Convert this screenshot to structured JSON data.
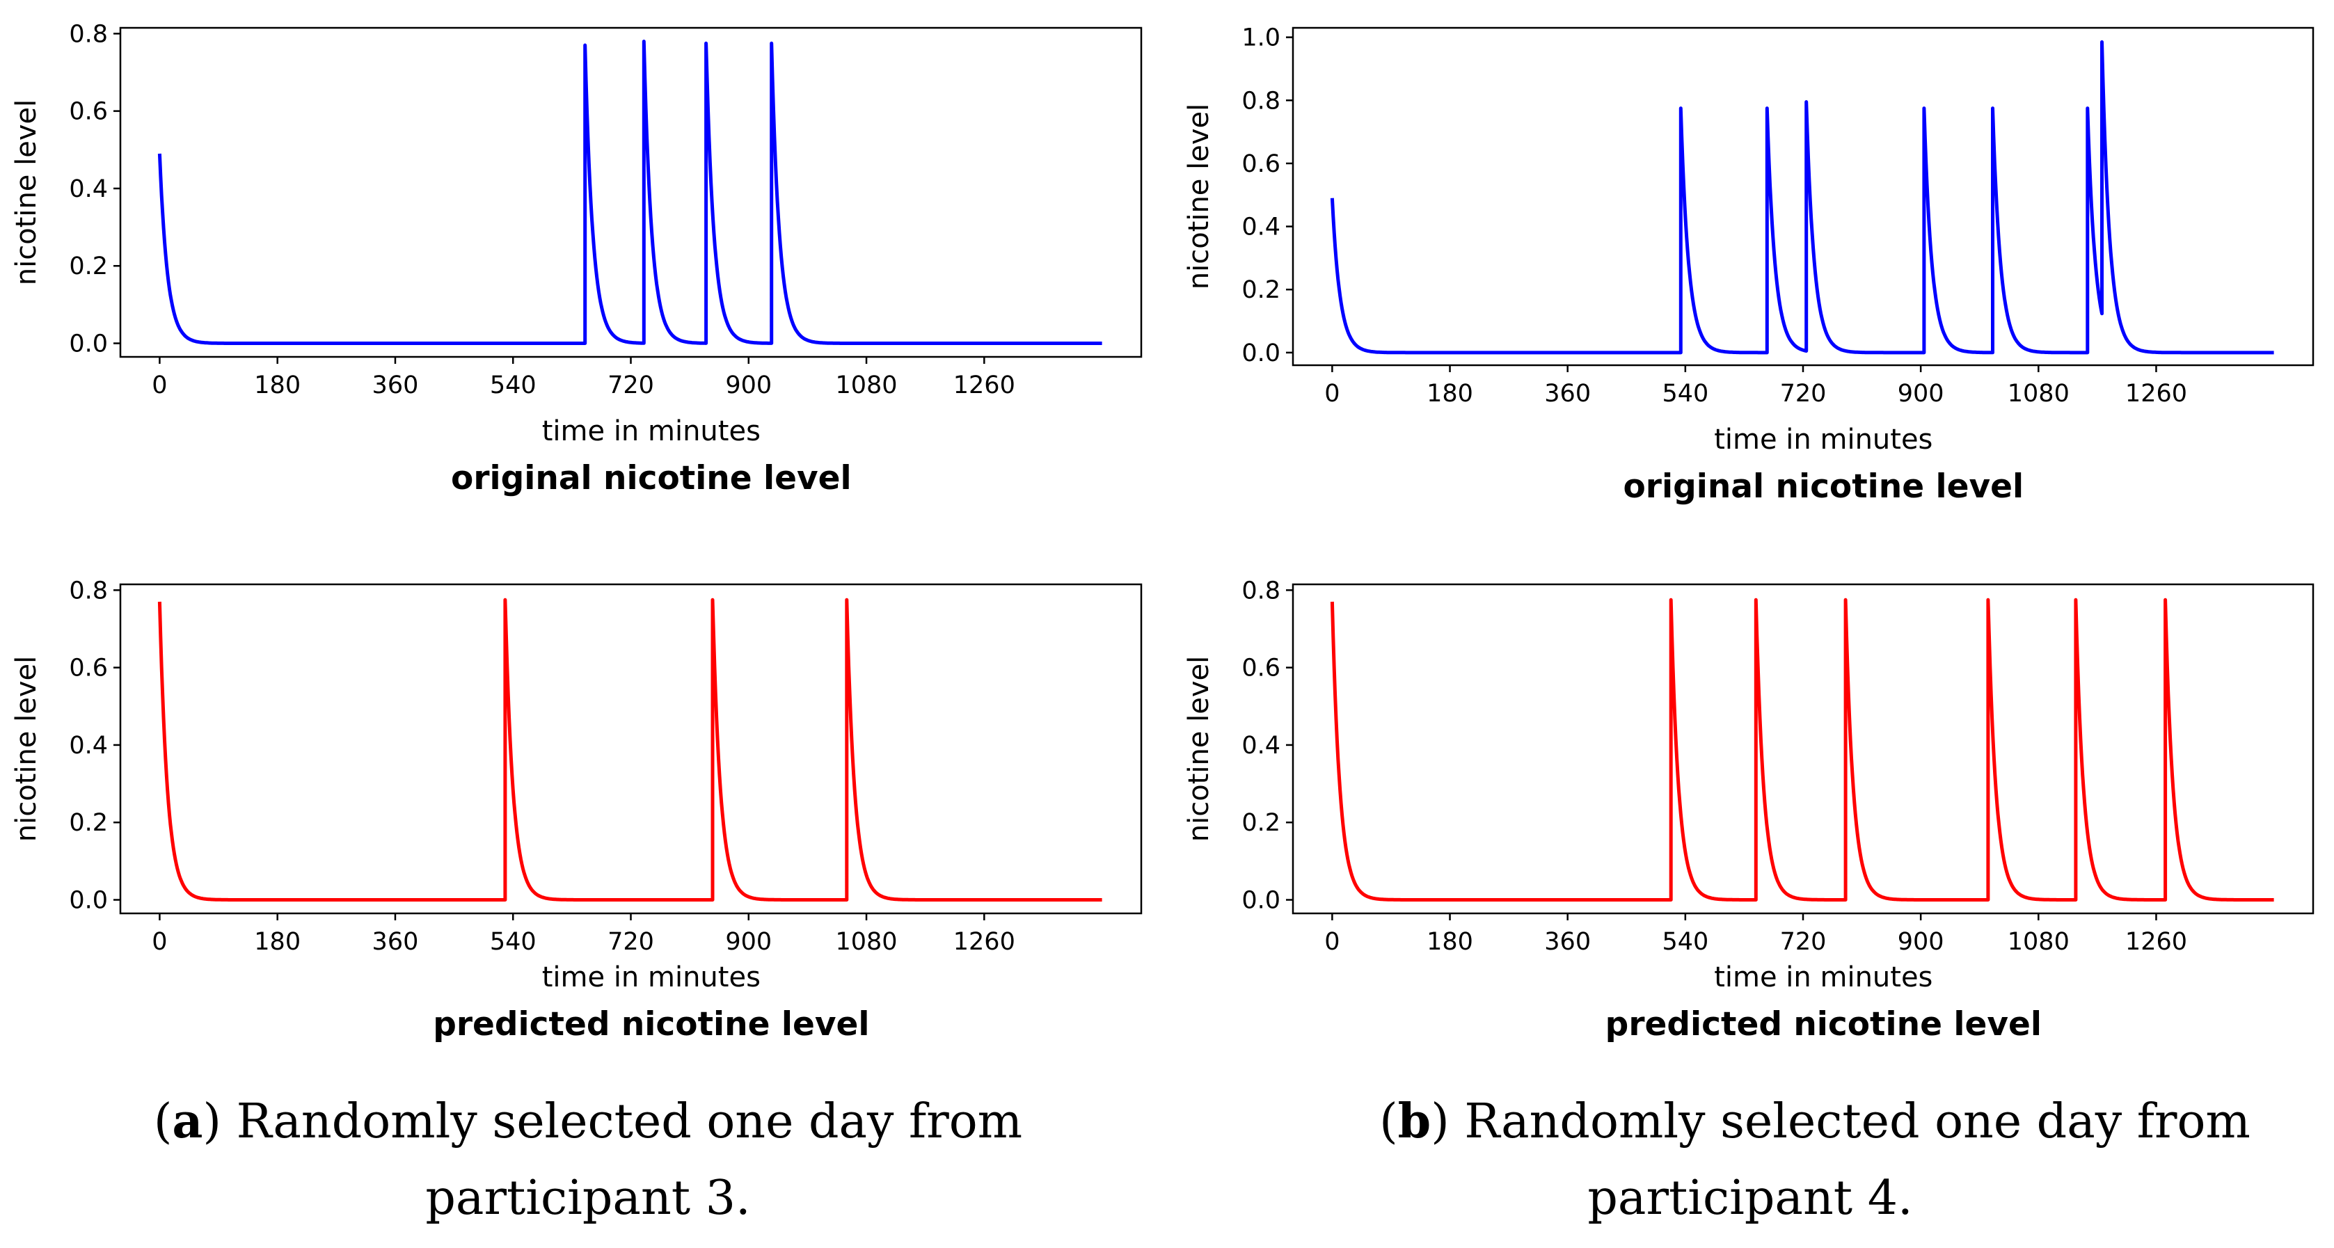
{
  "colors": {
    "original": "#0000ff",
    "predicted": "#ff0000",
    "axis": "#000000"
  },
  "captions": {
    "a": {
      "open": "(",
      "letter": "a",
      "rest": ") Randomly selected one day from",
      "line2": "participant 3."
    },
    "b": {
      "open": "(",
      "letter": "b",
      "rest": ") Randomly selected one day from",
      "line2": "participant 4."
    }
  },
  "chart_data": [
    {
      "id": "a-original",
      "type": "line",
      "title": "original nicotine level",
      "xlabel": "time in minutes",
      "ylabel": "nicotine level",
      "xlim": [
        -60,
        1500
      ],
      "ylim": [
        -0.035,
        0.815
      ],
      "xticks": [
        0,
        180,
        360,
        540,
        720,
        900,
        1080,
        1260
      ],
      "yticks": [
        0.0,
        0.2,
        0.4,
        0.6,
        0.8
      ],
      "ytick_labels": [
        "0.0",
        "0.2",
        "0.4",
        "0.6",
        "0.8"
      ],
      "series": [
        {
          "name": "original nicotine level",
          "color": "#0000ff",
          "start_level": 0.49,
          "end_time": 1440,
          "decay_minutes": 12,
          "doses": [
            {
              "time": 650,
              "level": 0.77
            },
            {
              "time": 740,
              "level": 0.78
            },
            {
              "time": 835,
              "level": 0.775
            },
            {
              "time": 935,
              "level": 0.775
            }
          ]
        }
      ]
    },
    {
      "id": "b-original",
      "type": "line",
      "title": "original nicotine level",
      "xlabel": "time in minutes",
      "ylabel": "nicotine level",
      "xlim": [
        -60,
        1500
      ],
      "ylim": [
        -0.04,
        1.03
      ],
      "xticks": [
        0,
        180,
        360,
        540,
        720,
        900,
        1080,
        1260
      ],
      "yticks": [
        0.0,
        0.2,
        0.4,
        0.6,
        0.8,
        1.0
      ],
      "ytick_labels": [
        "0.0",
        "0.2",
        "0.4",
        "0.6",
        "0.8",
        "1.0"
      ],
      "series": [
        {
          "name": "original nicotine level",
          "color": "#0000ff",
          "start_level": 0.49,
          "end_time": 1440,
          "decay_minutes": 12,
          "doses": [
            {
              "time": 533,
              "level": 0.775
            },
            {
              "time": 665,
              "level": 0.775
            },
            {
              "time": 725,
              "level": 0.795
            },
            {
              "time": 905,
              "level": 0.775
            },
            {
              "time": 1010,
              "level": 0.775
            },
            {
              "time": 1155,
              "level": 0.775
            },
            {
              "time": 1177,
              "level": 0.985
            }
          ]
        }
      ]
    },
    {
      "id": "a-predicted",
      "type": "line",
      "title": "predicted nicotine level",
      "xlabel": "time in minutes",
      "ylabel": "nicotine level",
      "xlim": [
        -60,
        1500
      ],
      "ylim": [
        -0.035,
        0.815
      ],
      "xticks": [
        0,
        180,
        360,
        540,
        720,
        900,
        1080,
        1260
      ],
      "yticks": [
        0.0,
        0.2,
        0.4,
        0.6,
        0.8
      ],
      "ytick_labels": [
        "0.0",
        "0.2",
        "0.4",
        "0.6",
        "0.8"
      ],
      "series": [
        {
          "name": "predicted nicotine level",
          "color": "#ff0000",
          "start_level": 0.77,
          "end_time": 1440,
          "decay_minutes": 12,
          "doses": [
            {
              "time": 528,
              "level": 0.775
            },
            {
              "time": 845,
              "level": 0.775
            },
            {
              "time": 1050,
              "level": 0.775
            }
          ]
        }
      ]
    },
    {
      "id": "b-predicted",
      "type": "line",
      "title": "predicted nicotine level",
      "xlabel": "time in minutes",
      "ylabel": "nicotine level",
      "xlim": [
        -60,
        1500
      ],
      "ylim": [
        -0.035,
        0.815
      ],
      "xticks": [
        0,
        180,
        360,
        540,
        720,
        900,
        1080,
        1260
      ],
      "yticks": [
        0.0,
        0.2,
        0.4,
        0.6,
        0.8
      ],
      "ytick_labels": [
        "0.0",
        "0.2",
        "0.4",
        "0.6",
        "0.8"
      ],
      "series": [
        {
          "name": "predicted nicotine level",
          "color": "#ff0000",
          "start_level": 0.77,
          "end_time": 1440,
          "decay_minutes": 12,
          "doses": [
            {
              "time": 518,
              "level": 0.775
            },
            {
              "time": 648,
              "level": 0.775
            },
            {
              "time": 785,
              "level": 0.775
            },
            {
              "time": 1003,
              "level": 0.775
            },
            {
              "time": 1137,
              "level": 0.775
            },
            {
              "time": 1274,
              "level": 0.775
            }
          ]
        }
      ]
    }
  ]
}
